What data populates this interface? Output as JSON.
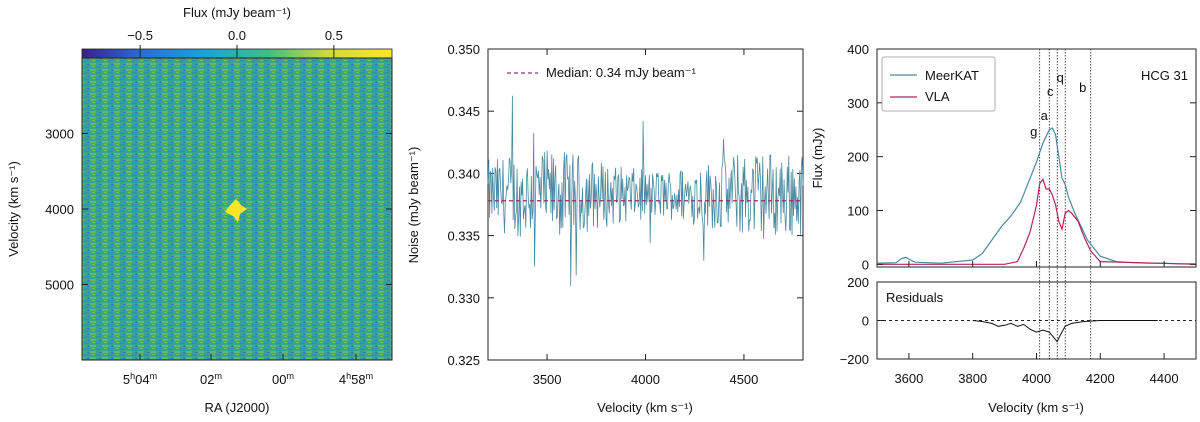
{
  "chart_data": [
    {
      "type": "heatmap",
      "xlabel": "RA (J2000)",
      "ylabel": "Velocity (km s⁻¹)",
      "xtick_labels": [
        "5h04m",
        "02m",
        "00m",
        "4h58m"
      ],
      "yticks": [
        3000,
        4000,
        5000
      ],
      "ylim": [
        6000,
        2000
      ],
      "colorbar": {
        "label": "Flux (mJy beam⁻¹)",
        "ticks": [
          -0.5,
          0.0,
          0.5
        ],
        "range": [
          -0.8,
          0.8
        ],
        "colormap": [
          "#3b1f8c",
          "#2a6fd8",
          "#1aa4d8",
          "#3fbf86",
          "#d3d93a",
          "#fde725"
        ]
      },
      "source": {
        "ra_label": "≈5h01m10s",
        "velocity": 4050
      }
    },
    {
      "type": "line",
      "xlabel": "Velocity (km s⁻¹)",
      "ylabel": "Noise (mJy beam⁻¹)",
      "xlim": [
        3200,
        4800
      ],
      "ylim": [
        0.325,
        0.35
      ],
      "xticks": [
        3500,
        4000,
        4500
      ],
      "yticks": [
        0.325,
        0.33,
        0.335,
        0.34,
        0.345,
        0.35
      ],
      "median": 0.3378,
      "legend": "Median: 0.34 mJy beam⁻¹",
      "legend_position": "top-left",
      "series_color": "#4b8aa0",
      "median_color": "#9b2d6a"
    },
    {
      "type": "line",
      "xlabel": "Velocity (km s⁻¹)",
      "ylabel": "Flux (mJy)",
      "title": "HCG 31",
      "xlim": [
        3500,
        4500
      ],
      "ylim": [
        -5,
        400
      ],
      "xticks": [
        3600,
        3800,
        4000,
        4200,
        4400
      ],
      "yticks": [
        0,
        100,
        200,
        300,
        400
      ],
      "legend_position": "top-left",
      "series": [
        {
          "name": "MeerKAT",
          "color": "#4b8aa0",
          "x": [
            3500,
            3560,
            3575,
            3590,
            3605,
            3620,
            3700,
            3800,
            3830,
            3860,
            3890,
            3920,
            3950,
            3980,
            4000,
            4020,
            4040,
            4050,
            4060,
            4070,
            4080,
            4090,
            4100,
            4120,
            4140,
            4160,
            4200,
            4250,
            4300,
            4350,
            4400,
            4450,
            4500
          ],
          "y": [
            2,
            3,
            10,
            13,
            8,
            4,
            2,
            8,
            20,
            45,
            70,
            90,
            115,
            160,
            190,
            225,
            250,
            253,
            240,
            200,
            160,
            148,
            125,
            95,
            70,
            45,
            15,
            5,
            3,
            2,
            2,
            1,
            1
          ]
        },
        {
          "name": "VLA",
          "color": "#b3245f",
          "x": [
            3500,
            3900,
            3940,
            3960,
            3980,
            4000,
            4010,
            4020,
            4030,
            4040,
            4050,
            4060,
            4070,
            4080,
            4090,
            4100,
            4110,
            4130,
            4150,
            4170,
            4200,
            4500
          ],
          "y": [
            0,
            0,
            5,
            30,
            60,
            110,
            150,
            158,
            140,
            140,
            128,
            110,
            80,
            65,
            95,
            100,
            95,
            80,
            50,
            25,
            5,
            0
          ]
        }
      ],
      "markers": [
        {
          "label": "g",
          "x": 4010
        },
        {
          "label": "a",
          "x": 4040
        },
        {
          "label": "c",
          "x": 4065
        },
        {
          "label": "q",
          "x": 4090
        },
        {
          "label": "b",
          "x": 4170
        }
      ],
      "residuals": {
        "label": "Residuals",
        "ylim": [
          -200,
          200
        ],
        "yticks": [
          -200,
          0,
          200
        ],
        "x": [
          3800,
          3830,
          3860,
          3880,
          3900,
          3920,
          3940,
          3960,
          3980,
          4000,
          4020,
          4040,
          4055,
          4065,
          4075,
          4090,
          4110,
          4150,
          4200,
          4300,
          4380
        ],
        "y": [
          0,
          -5,
          -15,
          -30,
          -25,
          -15,
          -30,
          -20,
          -45,
          -60,
          -50,
          -60,
          -90,
          -110,
          -75,
          -30,
          -15,
          -5,
          0,
          0,
          0
        ]
      }
    }
  ]
}
